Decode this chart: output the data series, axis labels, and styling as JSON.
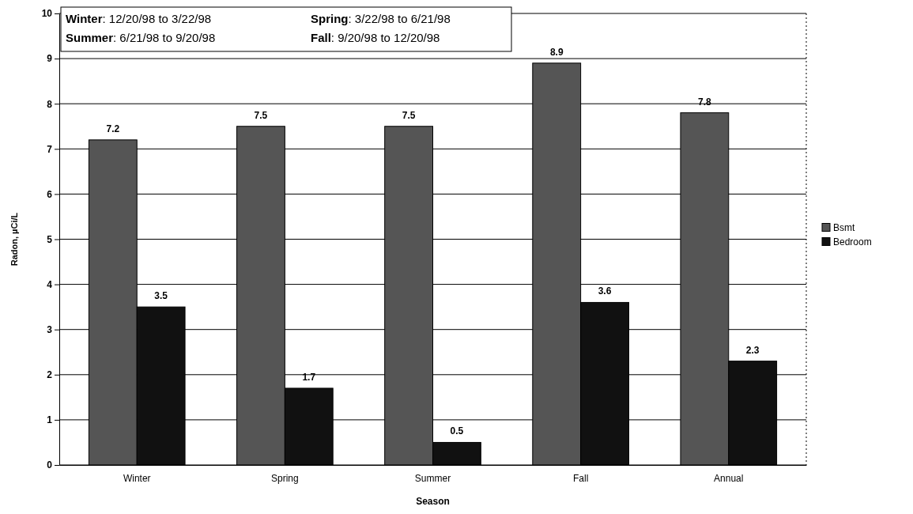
{
  "chart_data": {
    "type": "bar",
    "xlabel": "Season",
    "ylabel": "Radon, µCi/L",
    "categories": [
      "Winter",
      "Spring",
      "Summer",
      "Fall",
      "Annual"
    ],
    "series": [
      {
        "name": "Bsmt",
        "color": "#555555",
        "values": [
          7.2,
          7.5,
          7.5,
          8.9,
          7.8
        ]
      },
      {
        "name": "Bedroom",
        "color": "#111111",
        "values": [
          3.5,
          1.7,
          0.5,
          3.6,
          2.3
        ]
      }
    ],
    "ylim": [
      0,
      10
    ],
    "yticks": [
      0,
      1,
      2,
      3,
      4,
      5,
      6,
      7,
      8,
      9,
      10
    ],
    "grid": "y",
    "legend": "right",
    "data_labels": true,
    "annotations": [
      "Winter: 12/20/98 to 3/22/98",
      "Spring: 3/22/98 to 6/21/98",
      "Summer: 6/21/98 to 9/20/98",
      "Fall: 9/20/98 to 12/20/98"
    ]
  }
}
